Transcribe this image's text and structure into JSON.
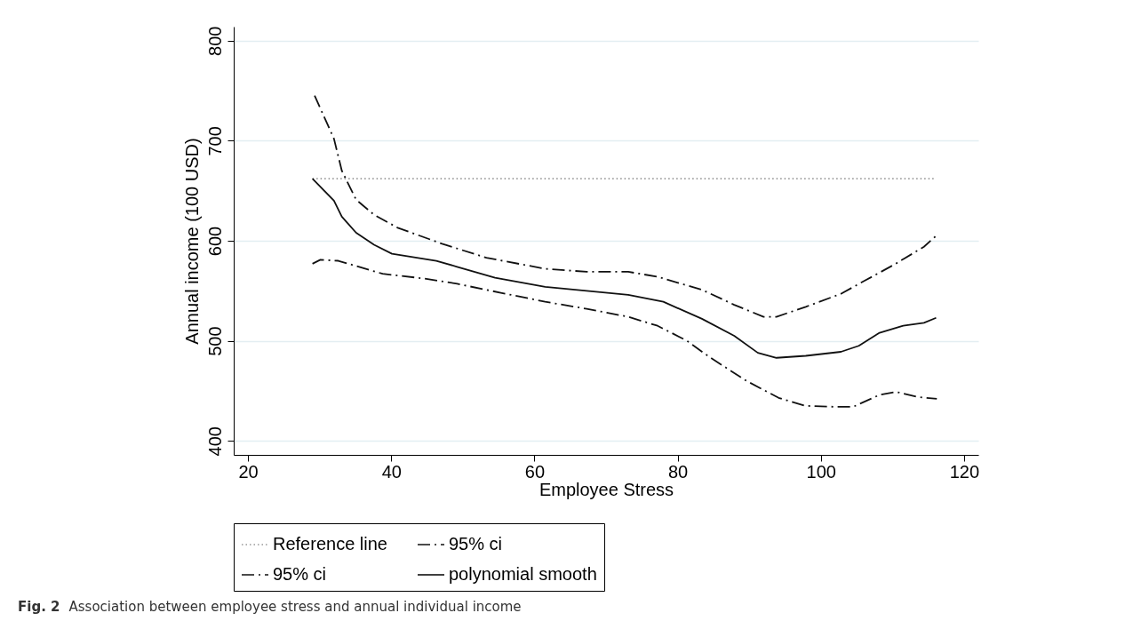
{
  "chart_data": {
    "type": "line",
    "xlabel": "Employee Stress",
    "ylabel": "Annual income (100 USD)",
    "xlim": [
      18,
      122
    ],
    "xticks": [
      20,
      40,
      60,
      80,
      100,
      120
    ],
    "ylim": [
      386,
      814
    ],
    "yticks": [
      400,
      500,
      600,
      700,
      800
    ],
    "grid": "y",
    "legend": "bottom",
    "marker": "none",
    "annotations": [
      "Fig. 2",
      "Association between employee stress and annual individual income"
    ],
    "series": [
      {
        "name": "Reference line",
        "color": "#999999",
        "line_style": "dotted",
        "x": [
          29,
          116
        ],
        "values": [
          662,
          662
        ]
      },
      {
        "name": "95% ci",
        "color": "#111111",
        "line_style": "dashdot",
        "x": [
          29.0,
          30.1,
          32.6,
          38.8,
          44.9,
          49.2,
          55.3,
          61.5,
          67.3,
          73.1,
          77.2,
          81.3,
          84.4,
          89.6,
          94.1,
          97.8,
          102.3,
          104.5,
          108.2,
          110.5,
          113.4,
          116.2
        ],
        "values": [
          577,
          581,
          580,
          567,
          562,
          557,
          548,
          539,
          532,
          524,
          515,
          500,
          484,
          460,
          443,
          435,
          434,
          434,
          446,
          449,
          444,
          442
        ]
      },
      {
        "name": "95% ci",
        "color": "#111111",
        "line_style": "dashdot",
        "x": [
          29.3,
          32.0,
          33.1,
          35.1,
          37.6,
          40.9,
          47.1,
          53.3,
          61.5,
          67.3,
          73.1,
          77.2,
          83.4,
          87.9,
          92.0,
          93.8,
          97.9,
          102.8,
          106.1,
          110.2,
          114.4,
          116.1
        ],
        "values": [
          745,
          702,
          670,
          641,
          626,
          613,
          597,
          583,
          572,
          569,
          569,
          564,
          551,
          536,
          524,
          524,
          534,
          547,
          560,
          576,
          594,
          605
        ]
      },
      {
        "name": "polynomial smooth",
        "color": "#111111",
        "line_style": "solid",
        "x": [
          29.0,
          32.0,
          33.1,
          35.1,
          37.6,
          40.1,
          46.3,
          49.2,
          54.5,
          61.5,
          67.3,
          73.1,
          78.0,
          83.4,
          87.9,
          91.2,
          93.8,
          97.9,
          102.8,
          105.3,
          108.2,
          111.5,
          114.4,
          116.1
        ],
        "values": [
          662,
          640,
          624,
          608,
          596,
          587,
          580,
          574,
          563,
          554,
          550,
          546,
          539,
          522,
          505,
          488,
          483,
          485,
          489,
          495,
          508,
          515,
          518,
          523
        ]
      }
    ]
  }
}
